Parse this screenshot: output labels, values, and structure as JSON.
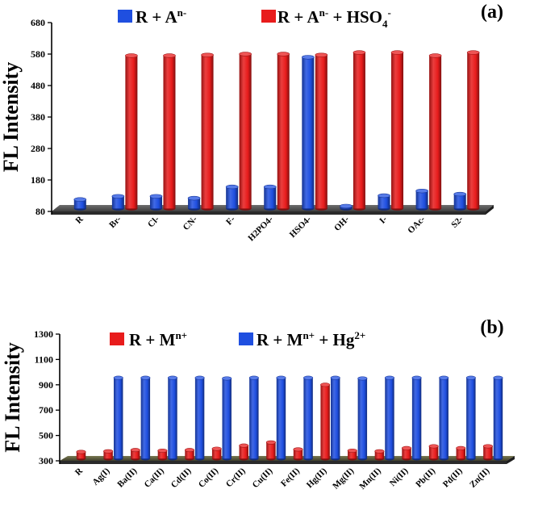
{
  "chart_data": [
    {
      "type": "bar",
      "panel_label": "(a)",
      "ylabel": "FL Intensity",
      "xlabel": "",
      "ylim": [
        80,
        680
      ],
      "yticks": [
        "80",
        "180",
        "280",
        "380",
        "480",
        "580",
        "680"
      ],
      "grid": false,
      "legend_position": "top",
      "categories": [
        "R",
        "Br-",
        "Cl-",
        "CN-",
        "F-",
        "H2PO4-",
        "HSO4-",
        "OH-",
        "I-",
        "OAc-",
        "S2-"
      ],
      "series": [
        {
          "name": "R + A^n-",
          "legend_main": "R + A",
          "legend_sup": "n-",
          "color": "#1f4fe0",
          "values": [
            118,
            128,
            128,
            122,
            158,
            158,
            570,
            85,
            130,
            145,
            135
          ]
        },
        {
          "name": "R + A^n- + HSO4^-",
          "legend_main": "R + A",
          "legend_sup": "n-",
          "legend_tail": " + HSO",
          "legend_sub": "4",
          "legend_sup2": "-",
          "color": "#e81c1c",
          "values": [
            null,
            575,
            575,
            577,
            580,
            580,
            577,
            585,
            585,
            575,
            585
          ]
        }
      ]
    },
    {
      "type": "bar",
      "panel_label": "(b)",
      "ylabel": "FL Intensity",
      "xlabel": "",
      "ylim": [
        300,
        1300
      ],
      "yticks": [
        "300",
        "500",
        "700",
        "900",
        "1100",
        "1300"
      ],
      "grid": false,
      "legend_position": "top",
      "categories": [
        "R",
        "Ag(I)",
        "Ba(II)",
        "Ca(II)",
        "Cd(II)",
        "Co(II)",
        "Cr(II)",
        "Cu(II)",
        "Fe(II)",
        "Hg(II)",
        "Mg(II)",
        "Mn(II)",
        "Ni(II)",
        "Pb(II)",
        "Pd(II)",
        "Zn(II)"
      ],
      "series": [
        {
          "name": "R + M^n+",
          "legend_main": "R + M",
          "legend_sup": "n+",
          "color": "#e81c1c",
          "values": [
            370,
            375,
            385,
            380,
            385,
            395,
            420,
            445,
            390,
            900,
            380,
            375,
            400,
            415,
            400,
            415
          ]
        },
        {
          "name": "R + M^n+ + Hg^2+",
          "legend_main": "R + M",
          "legend_sup": "n+",
          "legend_tail": " + Hg",
          "legend_sup2": "2+",
          "color": "#1f4fe0",
          "values": [
            null,
            955,
            955,
            955,
            955,
            950,
            955,
            955,
            955,
            955,
            950,
            955,
            955,
            955,
            955,
            955
          ]
        }
      ]
    }
  ]
}
